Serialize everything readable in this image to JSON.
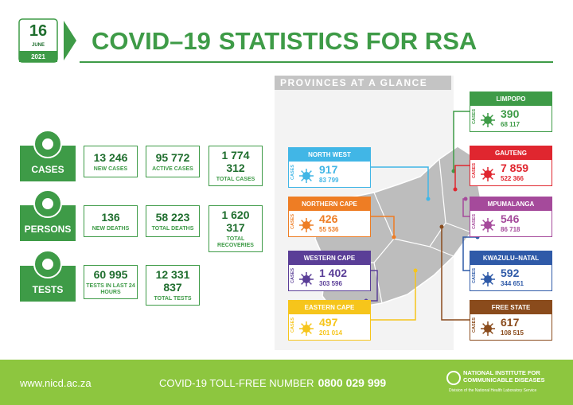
{
  "header": {
    "day": "16",
    "month": "JUNE",
    "year": "2021",
    "title_main": "COVID–19",
    "title_rest": "STATISTICS FOR RSA"
  },
  "stats": [
    {
      "label": "CASES",
      "items": [
        {
          "value": "13 246",
          "label": "NEW CASES"
        },
        {
          "value": "95 772",
          "label": "ACTIVE CASES"
        },
        {
          "value": "1 774 312",
          "label": "TOTAL CASES"
        }
      ]
    },
    {
      "label": "PERSONS",
      "items": [
        {
          "value": "136",
          "label": "NEW DEATHS"
        },
        {
          "value": "58 223",
          "label": "TOTAL DEATHS"
        },
        {
          "value": "1 620 317",
          "label": "TOTAL RECOVERIES"
        }
      ]
    },
    {
      "label": "TESTS",
      "items": [
        {
          "value": "60 995",
          "label": "TESTS IN LAST 24 HOURS"
        },
        {
          "value": "12 331 837",
          "label": "TOTAL TESTS"
        }
      ]
    }
  ],
  "provinces_heading": "PROVINCES AT A GLANCE",
  "cases_label": "CASES",
  "provinces": [
    {
      "name": "LIMPOPO",
      "color": "#3e9b47",
      "new": "390",
      "total": "68 117"
    },
    {
      "name": "NORTH WEST",
      "color": "#41b6e6",
      "new": "917",
      "total": "83 799"
    },
    {
      "name": "GAUTENG",
      "color": "#e0262f",
      "new": "7 859",
      "total": "522 366"
    },
    {
      "name": "NORTHERN CAPE",
      "color": "#ee7d24",
      "new": "426",
      "total": "55 536"
    },
    {
      "name": "MPUMALANGA",
      "color": "#a54a9b",
      "new": "546",
      "total": "86 718"
    },
    {
      "name": "WESTERN CAPE",
      "color": "#5a3e97",
      "new": "1 402",
      "total": "303 596"
    },
    {
      "name": "KWAZULU–NATAL",
      "color": "#2f5aa8",
      "new": "592",
      "total": "344 651"
    },
    {
      "name": "EASTERN CAPE",
      "color": "#f6c51b",
      "new": "497",
      "total": "201 014"
    },
    {
      "name": "FREE STATE",
      "color": "#8a4b1c",
      "new": "617",
      "total": "108 515"
    }
  ],
  "footer": {
    "website": "www.nicd.ac.za",
    "tollfree": "COVID-19 TOLL-FREE NUMBER",
    "number": "0800 029 999",
    "org_line1": "NATIONAL INSTITUTE FOR",
    "org_line2": "COMMUNICABLE DISEASES",
    "org_sub": "Division of the National Health Laboratory Service"
  }
}
